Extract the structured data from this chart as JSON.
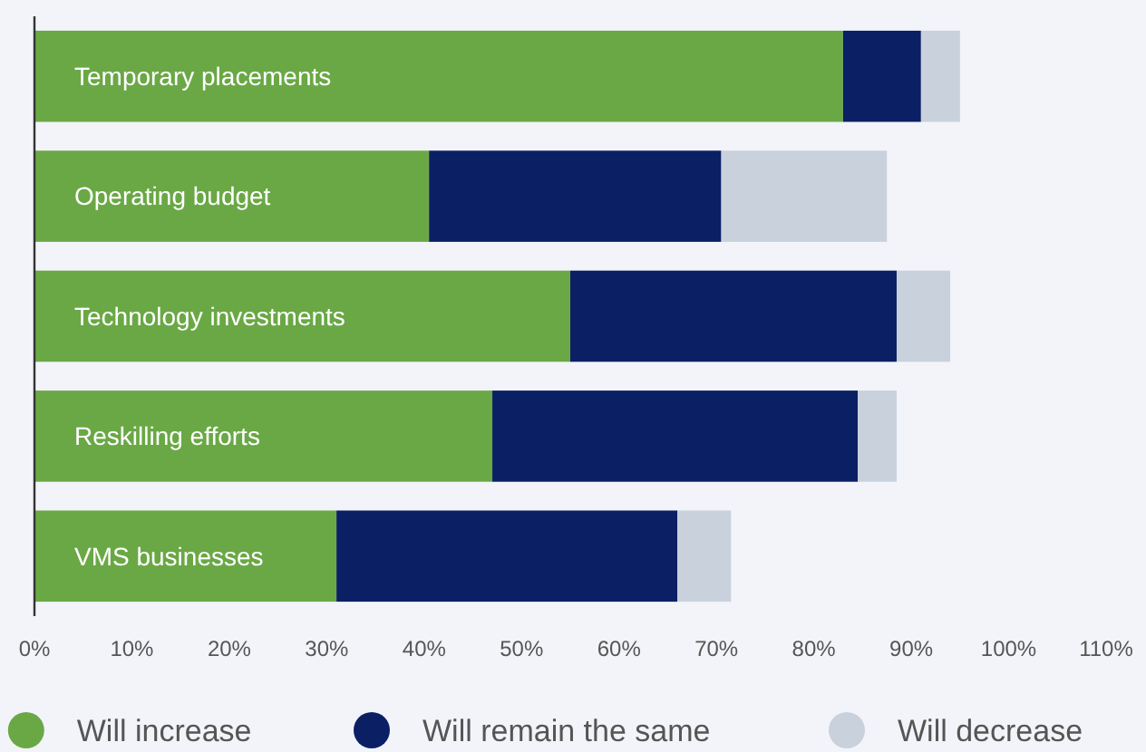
{
  "chart_data": {
    "type": "bar",
    "orientation": "horizontal",
    "stacked": true,
    "categories": [
      "Temporary placements",
      "Operating budget",
      "Technology investments",
      "Reskilling efforts",
      "VMS businesses"
    ],
    "series": [
      {
        "name": "Will increase",
        "color": "#6aa845",
        "values": [
          83,
          40.5,
          55,
          47,
          31
        ]
      },
      {
        "name": "Will remain the same",
        "color": "#0b1f64",
        "values": [
          8,
          30,
          33.5,
          37.5,
          35
        ]
      },
      {
        "name": "Will decrease",
        "color": "#c8d1dc",
        "values": [
          4,
          17,
          5.5,
          4,
          5.5
        ]
      }
    ],
    "xlim": [
      0,
      110
    ],
    "xticks": [
      {
        "value": 0,
        "label": "0%"
      },
      {
        "value": 10,
        "label": "10%"
      },
      {
        "value": 20,
        "label": "20%"
      },
      {
        "value": 30,
        "label": "30%"
      },
      {
        "value": 40,
        "label": "40%"
      },
      {
        "value": 50,
        "label": "50%"
      },
      {
        "value": 60,
        "label": "60%"
      },
      {
        "value": 70,
        "label": "70%"
      },
      {
        "value": 80,
        "label": "80%"
      },
      {
        "value": 90,
        "label": "90%"
      },
      {
        "value": 100,
        "label": "100%"
      },
      {
        "value": 110,
        "label": "110%"
      }
    ],
    "grid": false,
    "legend": "bottom"
  }
}
